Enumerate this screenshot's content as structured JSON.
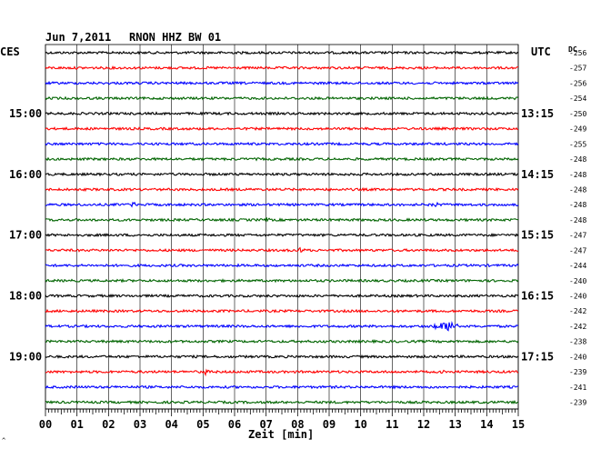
{
  "header": {
    "date": "Jun 7,2011",
    "station": "RNON HHZ BW 01",
    "left_tz": "CES",
    "right_tz": "UTC",
    "dc_label": "DC"
  },
  "chart_data": {
    "type": "line",
    "title": "Jun 7,2011   RNON HHZ BW 01",
    "xlabel": "Zeit [min]",
    "x_ticks": [
      "00",
      "01",
      "02",
      "03",
      "04",
      "05",
      "06",
      "07",
      "08",
      "09",
      "10",
      "11",
      "12",
      "13",
      "14",
      "15"
    ],
    "xlim": [
      0,
      15
    ],
    "left_hour_labels": [
      "15:00",
      "16:00",
      "17:00",
      "18:00",
      "19:00"
    ],
    "right_hour_labels": [
      "13:15",
      "14:15",
      "15:15",
      "16:15",
      "17:15"
    ],
    "hour_label_trace_index": [
      4,
      8,
      12,
      16,
      20
    ],
    "trace_colors": [
      "#000000",
      "#ff0000",
      "#0000ff",
      "#006400"
    ],
    "dc_offsets": [
      "-256",
      "-257",
      "-256",
      "-254",
      "-250",
      "-249",
      "-255",
      "-248",
      "-248",
      "-248",
      "-248",
      "-248",
      "-247",
      "-247",
      "-244",
      "-240",
      "-240",
      "-242",
      "-242",
      "-238",
      "-240",
      "-239",
      "-241",
      "-239"
    ],
    "events": [
      {
        "trace": 10,
        "minute": 2.8,
        "amplitude": 3
      },
      {
        "trace": 10,
        "minute": 12.4,
        "amplitude": 3
      },
      {
        "trace": 11,
        "minute": 7.0,
        "amplitude": 3
      },
      {
        "trace": 13,
        "minute": 8.1,
        "amplitude": 3
      },
      {
        "trace": 18,
        "minute": 12.8,
        "amplitude": 6
      },
      {
        "trace": 21,
        "minute": 5.1,
        "amplitude": 3
      },
      {
        "trace": 21,
        "minute": 12.6,
        "amplitude": 3
      }
    ],
    "grid": true
  }
}
